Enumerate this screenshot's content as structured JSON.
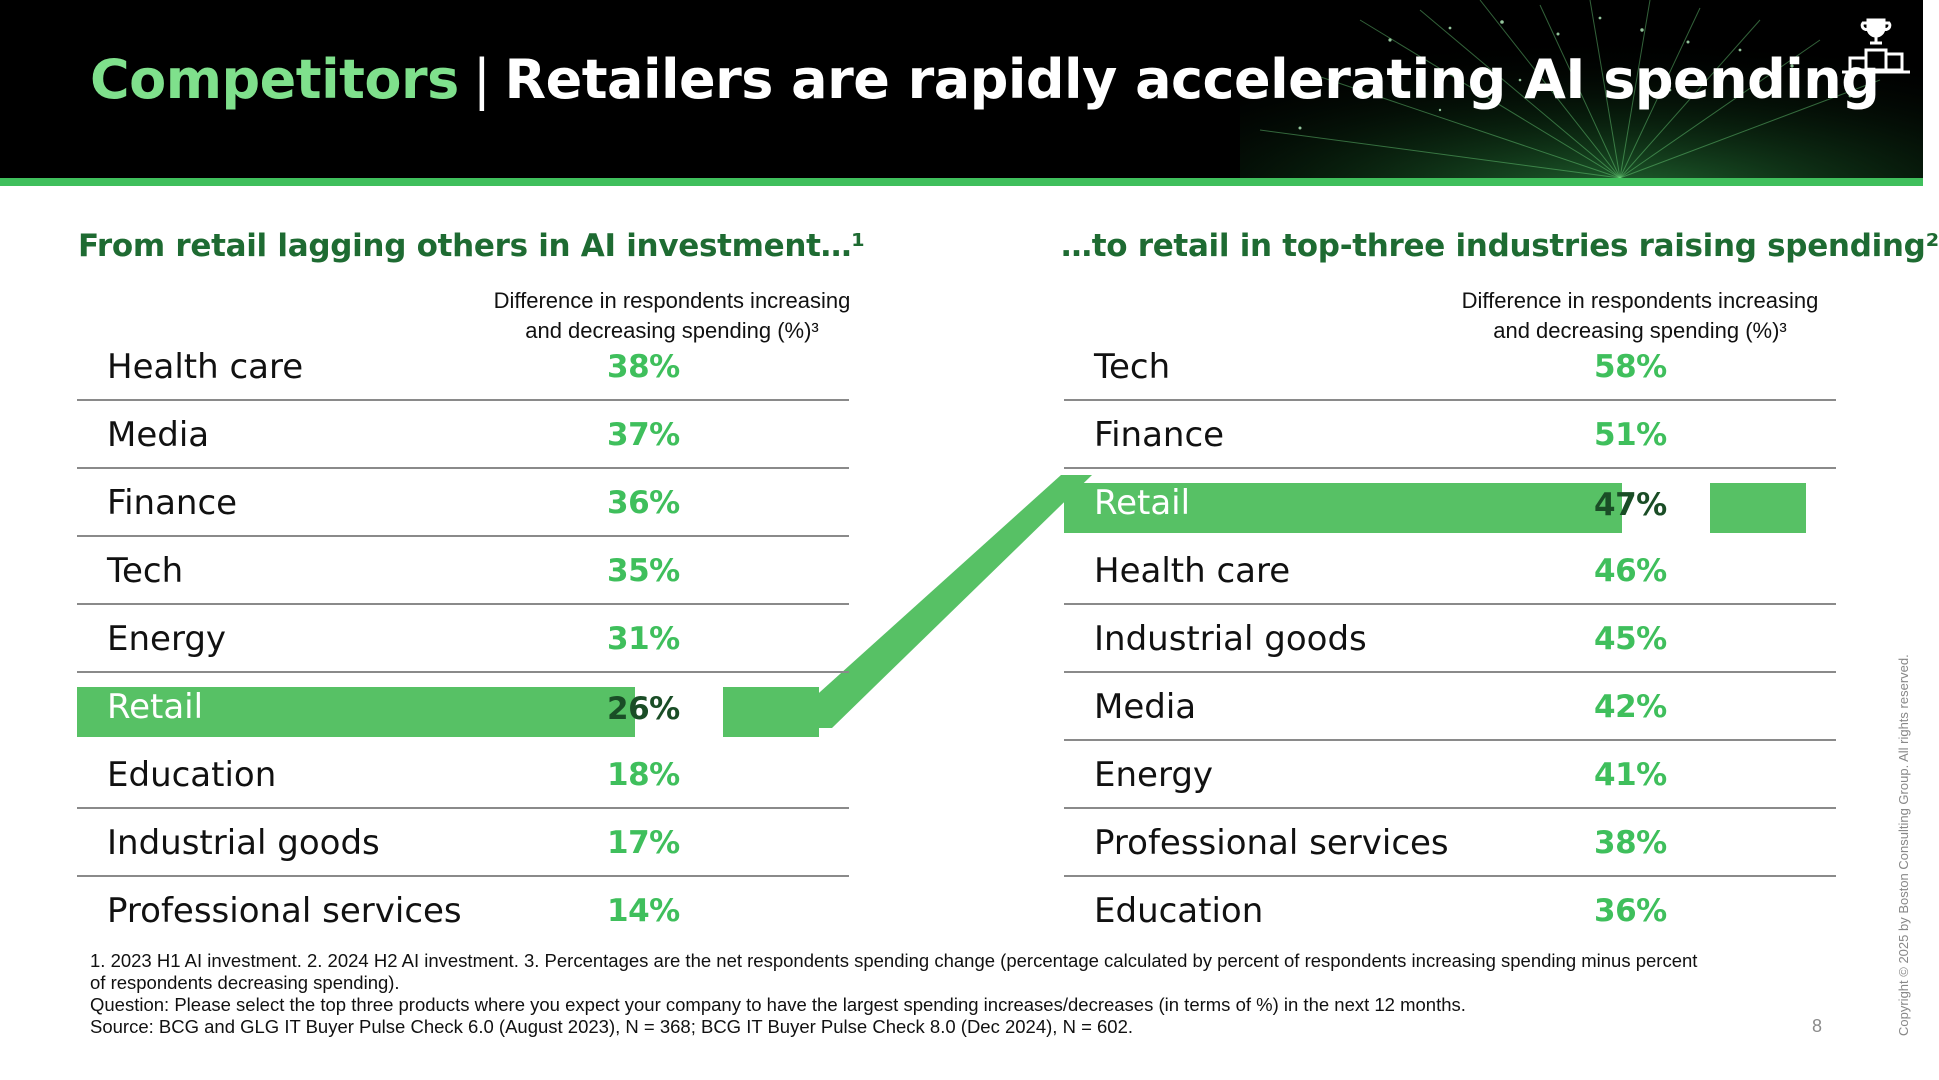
{
  "header": {
    "title_accent": "Competitors",
    "title_separator": "|",
    "title_main": "Retailers are rapidly accelerating AI spending",
    "icon": "trophy-podium-icon"
  },
  "colors": {
    "accent_green": "#3fbf5c",
    "highlight_green": "#57c165",
    "dark_green_text": "#1e6b32",
    "header_bg": "#000000"
  },
  "chart_data": [
    {
      "type": "table",
      "title": "From retail lagging others in AI investment…¹",
      "column_header": "Difference in respondents increasing and decreasing spending (%)³",
      "column_header_line1": "Difference in respondents increasing",
      "column_header_line2": "and decreasing spending (%)³",
      "highlight": "Retail",
      "rows": [
        {
          "label": "Health care",
          "value": "38%"
        },
        {
          "label": "Media",
          "value": "37%"
        },
        {
          "label": "Finance",
          "value": "36%"
        },
        {
          "label": "Tech",
          "value": "35%"
        },
        {
          "label": "Energy",
          "value": "31%"
        },
        {
          "label": "Retail",
          "value": "26%"
        },
        {
          "label": "Education",
          "value": "18%"
        },
        {
          "label": "Industrial goods",
          "value": "17%"
        },
        {
          "label": "Professional services",
          "value": "14%"
        }
      ]
    },
    {
      "type": "table",
      "title": "…to retail in top-three industries raising spending²",
      "column_header": "Difference in respondents increasing and decreasing spending (%)³",
      "column_header_line1": "Difference in respondents increasing",
      "column_header_line2": "and decreasing spending (%)³",
      "highlight": "Retail",
      "rows": [
        {
          "label": "Tech",
          "value": "58%"
        },
        {
          "label": "Finance",
          "value": "51%"
        },
        {
          "label": "Retail",
          "value": "47%"
        },
        {
          "label": "Health care",
          "value": "46%"
        },
        {
          "label": "Industrial goods",
          "value": "45%"
        },
        {
          "label": "Media",
          "value": "42%"
        },
        {
          "label": "Energy",
          "value": "41%"
        },
        {
          "label": "Professional services",
          "value": "38%"
        },
        {
          "label": "Education",
          "value": "36%"
        }
      ]
    }
  ],
  "footnotes": {
    "line1": "1. 2023 H1 AI investment. 2. 2024 H2 AI investment. 3. Percentages are the net respondents spending change (percentage calculated by percent of respondents increasing spending minus percent",
    "line2": "of respondents decreasing spending).",
    "line3": "Question: Please select the top three products where you expect your company to have the largest spending increases/decreases (in terms of %) in the next 12 months.",
    "line4": "Source: BCG and GLG IT Buyer Pulse Check 6.0 (August 2023), N = 368; BCG IT Buyer Pulse Check 8.0 (Dec 2024), N = 602."
  },
  "page_number": "8",
  "copyright": "Copyright © 2025 by Boston Consulting Group. All rights reserved."
}
